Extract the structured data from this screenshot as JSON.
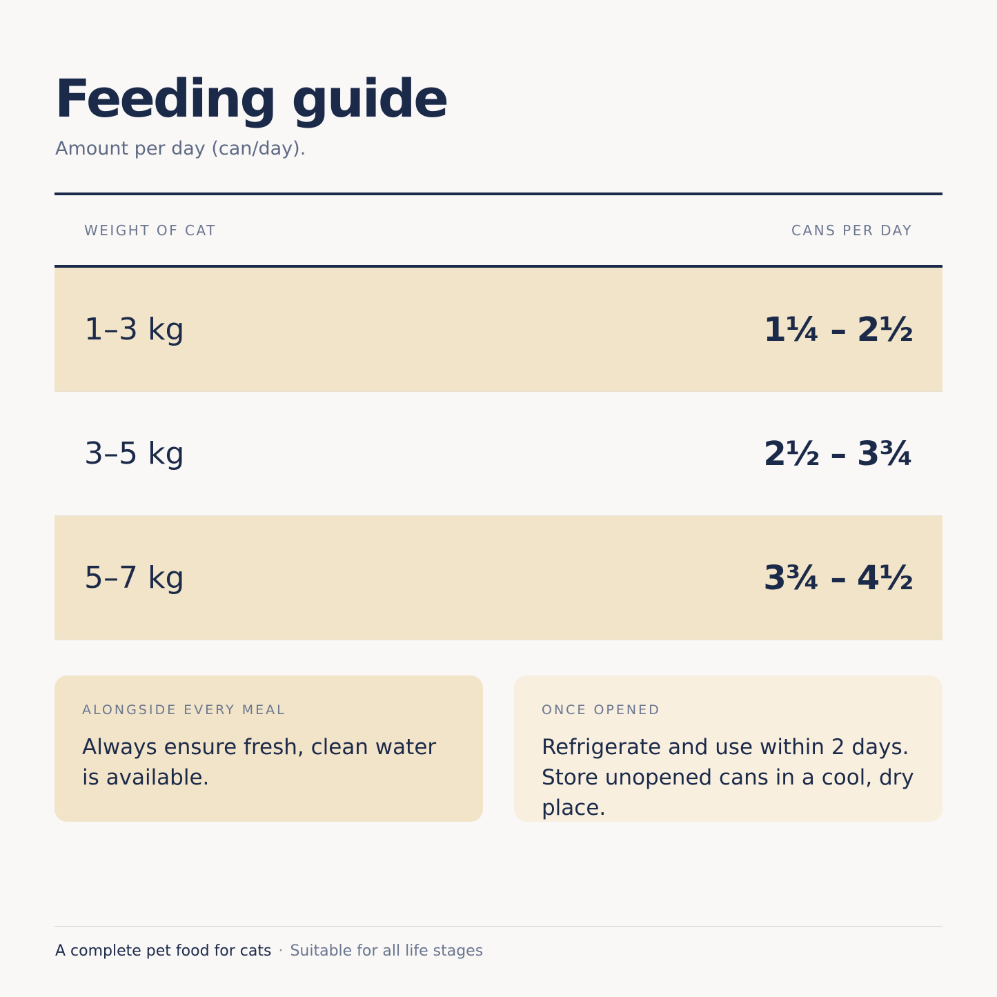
{
  "header": {
    "title": "Feeding guide",
    "subtitle": "Amount per day (can/day)."
  },
  "table": {
    "columns": [
      "WEIGHT OF CAT",
      "CANS PER DAY"
    ],
    "rows": [
      {
        "weight": "1–3 kg",
        "cans": "1¼ – 2½"
      },
      {
        "weight": "3–5 kg",
        "cans": "2½ – 3¾"
      },
      {
        "weight": "5–7 kg",
        "cans": "3¾ – 4½"
      }
    ]
  },
  "cards": [
    {
      "label": "ALONGSIDE EVERY MEAL",
      "text": "Always ensure fresh, clean water is available."
    },
    {
      "label": "ONCE OPENED",
      "text": "Refrigerate and use within 2 days. Store unopened cans in a cool, dry place."
    }
  ],
  "footer": {
    "primary": "A complete pet food for cats",
    "separator": "·",
    "secondary": "Suitable for all life stages"
  },
  "colors": {
    "navy": "#1c2a4a",
    "tint": "#f2e4c8",
    "light_tint": "#f8efdf",
    "muted": "#6b7690"
  }
}
